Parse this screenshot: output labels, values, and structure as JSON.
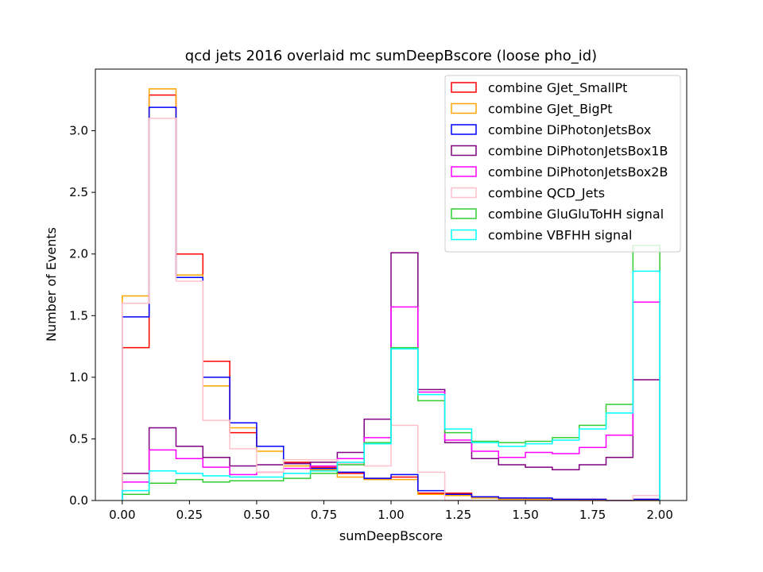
{
  "chart_data": {
    "type": "histogram",
    "title": "qcd jets 2016 overlaid mc sumDeepBscore (loose pho_id)",
    "xlabel": "sumDeepBscore",
    "ylabel": "Number of Events",
    "xlim": [
      -0.1,
      2.1
    ],
    "ylim": [
      0,
      3.5
    ],
    "xticks": [
      "0.00",
      "0.25",
      "0.50",
      "0.75",
      "1.00",
      "1.25",
      "1.50",
      "1.75",
      "2.00"
    ],
    "yticks": [
      "0.0",
      "0.5",
      "1.0",
      "1.5",
      "2.0",
      "2.5",
      "3.0"
    ],
    "bin_edges": [
      0.0,
      0.1,
      0.2,
      0.3,
      0.4,
      0.5,
      0.6,
      0.7,
      0.8,
      0.9,
      1.0,
      1.1,
      1.2,
      1.3,
      1.4,
      1.5,
      1.6,
      1.7,
      1.8,
      1.9,
      2.0
    ],
    "legend_position": "top-right",
    "series": [
      {
        "name": "combine GJet_SmallPt",
        "color": "#ff0000",
        "values": [
          1.24,
          3.29,
          2.0,
          1.13,
          0.55,
          0.44,
          0.31,
          0.27,
          0.22,
          0.18,
          0.19,
          0.06,
          0.06,
          0.03,
          0.02,
          0.01,
          0.01,
          0.01,
          0.0,
          0.01
        ]
      },
      {
        "name": "combine GJet_BigPt",
        "color": "#ffa500",
        "values": [
          1.66,
          3.34,
          1.83,
          0.93,
          0.59,
          0.4,
          0.28,
          0.25,
          0.19,
          0.17,
          0.17,
          0.05,
          0.04,
          0.02,
          0.01,
          0.01,
          0.01,
          0.0,
          0.0,
          0.0
        ]
      },
      {
        "name": "combine DiPhotonJetsBox",
        "color": "#0000ff",
        "values": [
          1.49,
          3.19,
          1.81,
          1.0,
          0.63,
          0.44,
          0.3,
          0.26,
          0.23,
          0.18,
          0.21,
          0.08,
          0.05,
          0.03,
          0.02,
          0.02,
          0.01,
          0.01,
          0.0,
          0.01
        ]
      },
      {
        "name": "combine DiPhotonJetsBox1B",
        "color": "#800080",
        "values": [
          0.22,
          0.59,
          0.44,
          0.35,
          0.28,
          0.29,
          0.3,
          0.31,
          0.39,
          0.66,
          2.01,
          0.9,
          0.47,
          0.34,
          0.29,
          0.27,
          0.25,
          0.29,
          0.35,
          0.98
        ]
      },
      {
        "name": "combine DiPhotonJetsBox2B",
        "color": "#ff00ff",
        "values": [
          0.15,
          0.41,
          0.34,
          0.27,
          0.21,
          0.23,
          0.26,
          0.28,
          0.34,
          0.51,
          1.57,
          0.88,
          0.49,
          0.4,
          0.35,
          0.39,
          0.38,
          0.43,
          0.53,
          1.61
        ]
      },
      {
        "name": "combine QCD_Jets",
        "color": "#ffc0cb",
        "values": [
          1.6,
          3.1,
          1.78,
          0.65,
          0.42,
          0.23,
          0.33,
          0.33,
          0.3,
          0.28,
          0.61,
          0.23,
          0.0,
          0.0,
          0.0,
          0.0,
          0.0,
          0.0,
          0.0,
          0.04
        ]
      },
      {
        "name": "combine GluGluToHH signal",
        "color": "#32cd32",
        "values": [
          0.05,
          0.14,
          0.17,
          0.15,
          0.16,
          0.16,
          0.18,
          0.22,
          0.29,
          0.47,
          1.24,
          0.81,
          0.55,
          0.48,
          0.47,
          0.48,
          0.51,
          0.61,
          0.78,
          2.07
        ]
      },
      {
        "name": "combine VBFHH signal",
        "color": "#00ffff",
        "values": [
          0.08,
          0.24,
          0.22,
          0.2,
          0.19,
          0.19,
          0.22,
          0.24,
          0.31,
          0.46,
          1.23,
          0.86,
          0.58,
          0.47,
          0.44,
          0.46,
          0.49,
          0.58,
          0.71,
          1.86
        ]
      }
    ]
  }
}
